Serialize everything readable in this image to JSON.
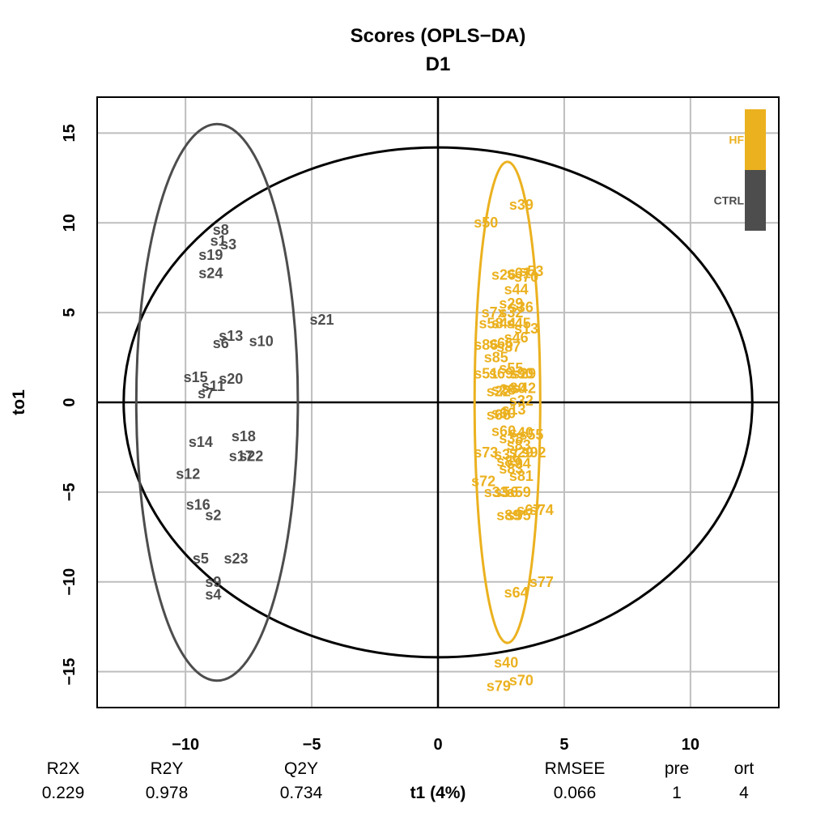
{
  "chart_data": {
    "type": "scatter",
    "title": "Scores (OPLS−DA)",
    "subtitle": "D1",
    "xlabel": "t1 (4%)",
    "ylabel": "to1",
    "xlim": [
      -13.5,
      13.5
    ],
    "ylim": [
      -17,
      17
    ],
    "xticks": [
      -10,
      -5,
      0,
      5,
      10
    ],
    "xtick_labels": [
      "−10",
      "−5",
      "0",
      "5",
      "10"
    ],
    "yticks": [
      -15,
      -10,
      -5,
      0,
      5,
      10,
      15
    ],
    "ytick_labels": [
      "−15",
      "−10",
      "−5",
      "0",
      "5",
      "10",
      "15"
    ],
    "grid": true,
    "legend_position": "top-right",
    "colors": {
      "HF": "#EBB11F",
      "CTRL": "#4D4D4D"
    },
    "hotelling_ellipse": {
      "cx": 0,
      "cy": 0,
      "rx": 12.45,
      "ry": 14.2
    },
    "group_ellipses": [
      {
        "group": "CTRL",
        "cx": -8.75,
        "cy": 0,
        "rx": 3.2,
        "ry": 15.5
      },
      {
        "group": "HF",
        "cx": 2.75,
        "cy": 0,
        "rx": 1.3,
        "ry": 13.4
      }
    ],
    "series": [
      {
        "name": "CTRL",
        "points": [
          {
            "label": "s8",
            "x": -8.6,
            "y": 9.6
          },
          {
            "label": "s1",
            "x": -8.7,
            "y": 9.0
          },
          {
            "label": "s3",
            "x": -8.3,
            "y": 8.8
          },
          {
            "label": "s19",
            "x": -9.0,
            "y": 8.2
          },
          {
            "label": "s24",
            "x": -9.0,
            "y": 7.2
          },
          {
            "label": "s21",
            "x": -4.6,
            "y": 4.6
          },
          {
            "label": "s13",
            "x": -8.2,
            "y": 3.7
          },
          {
            "label": "s6",
            "x": -8.6,
            "y": 3.3
          },
          {
            "label": "s10",
            "x": -7.0,
            "y": 3.4
          },
          {
            "label": "s15",
            "x": -9.6,
            "y": 1.4
          },
          {
            "label": "s20",
            "x": -8.2,
            "y": 1.3
          },
          {
            "label": "s11",
            "x": -8.9,
            "y": 0.9
          },
          {
            "label": "s7",
            "x": -9.2,
            "y": 0.5
          },
          {
            "label": "s14",
            "x": -9.4,
            "y": -2.2
          },
          {
            "label": "s18",
            "x": -7.7,
            "y": -1.9
          },
          {
            "label": "s17",
            "x": -7.8,
            "y": -3.0
          },
          {
            "label": "s22",
            "x": -7.4,
            "y": -3.0
          },
          {
            "label": "s12",
            "x": -9.9,
            "y": -4.0
          },
          {
            "label": "s16",
            "x": -9.5,
            "y": -5.7
          },
          {
            "label": "s2",
            "x": -8.9,
            "y": -6.3
          },
          {
            "label": "s5",
            "x": -9.4,
            "y": -8.7
          },
          {
            "label": "s23",
            "x": -8.0,
            "y": -8.7
          },
          {
            "label": "s9",
            "x": -8.9,
            "y": -10.0
          },
          {
            "label": "s4",
            "x": -8.9,
            "y": -10.7
          }
        ]
      },
      {
        "name": "HF",
        "points": [
          {
            "label": "s39",
            "x": 3.3,
            "y": 11.0
          },
          {
            "label": "s50",
            "x": 1.9,
            "y": 10.0
          },
          {
            "label": "s26",
            "x": 2.6,
            "y": 7.1
          },
          {
            "label": "s61",
            "x": 3.2,
            "y": 7.2
          },
          {
            "label": "s53",
            "x": 3.7,
            "y": 7.3
          },
          {
            "label": "s70",
            "x": 3.5,
            "y": 7.0
          },
          {
            "label": "s44",
            "x": 3.1,
            "y": 6.3
          },
          {
            "label": "s29",
            "x": 2.9,
            "y": 5.5
          },
          {
            "label": "s36",
            "x": 3.3,
            "y": 5.3
          },
          {
            "label": "s7x",
            "x": 2.2,
            "y": 5.0
          },
          {
            "label": "s32",
            "x": 2.9,
            "y": 5.0
          },
          {
            "label": "s58",
            "x": 2.1,
            "y": 4.4
          },
          {
            "label": "s44",
            "x": 2.6,
            "y": 4.4
          },
          {
            "label": "s45",
            "x": 3.2,
            "y": 4.4
          },
          {
            "label": "s13",
            "x": 3.5,
            "y": 4.1
          },
          {
            "label": "s46",
            "x": 3.1,
            "y": 3.6
          },
          {
            "label": "s86",
            "x": 1.9,
            "y": 3.2
          },
          {
            "label": "s66",
            "x": 2.5,
            "y": 3.3
          },
          {
            "label": "s87",
            "x": 2.8,
            "y": 3.1
          },
          {
            "label": "s85",
            "x": 2.3,
            "y": 2.5
          },
          {
            "label": "s55",
            "x": 2.9,
            "y": 1.9
          },
          {
            "label": "s51",
            "x": 1.9,
            "y": 1.6
          },
          {
            "label": "s69",
            "x": 2.5,
            "y": 1.6
          },
          {
            "label": "s90",
            "x": 3.3,
            "y": 1.6
          },
          {
            "label": "s29",
            "x": 3.4,
            "y": 1.6
          },
          {
            "label": "s28",
            "x": 2.6,
            "y": 0.7
          },
          {
            "label": "s80",
            "x": 3.0,
            "y": 0.8
          },
          {
            "label": "s42",
            "x": 3.4,
            "y": 0.8
          },
          {
            "label": "s22",
            "x": 2.4,
            "y": 0.6
          },
          {
            "label": "s32",
            "x": 3.3,
            "y": 0.1
          },
          {
            "label": "s13",
            "x": 3.0,
            "y": -0.4
          },
          {
            "label": "s66",
            "x": 2.4,
            "y": -0.7
          },
          {
            "label": "s60",
            "x": 2.6,
            "y": -0.6
          },
          {
            "label": "s60",
            "x": 2.6,
            "y": -1.6
          },
          {
            "label": "s40",
            "x": 3.3,
            "y": -1.7
          },
          {
            "label": "s55",
            "x": 3.7,
            "y": -1.8
          },
          {
            "label": "s38",
            "x": 2.9,
            "y": -2.0
          },
          {
            "label": "s83",
            "x": 3.2,
            "y": -2.4
          },
          {
            "label": "s73",
            "x": 1.9,
            "y": -2.8
          },
          {
            "label": "s37",
            "x": 2.7,
            "y": -2.9
          },
          {
            "label": "s29",
            "x": 3.3,
            "y": -2.8
          },
          {
            "label": "s92",
            "x": 3.8,
            "y": -2.8
          },
          {
            "label": "s89",
            "x": 2.8,
            "y": -3.3
          },
          {
            "label": "s94",
            "x": 3.2,
            "y": -3.4
          },
          {
            "label": "s83",
            "x": 2.9,
            "y": -3.7
          },
          {
            "label": "s81",
            "x": 3.3,
            "y": -4.1
          },
          {
            "label": "s72",
            "x": 1.8,
            "y": -4.4
          },
          {
            "label": "s33",
            "x": 2.3,
            "y": -5.0
          },
          {
            "label": "s56",
            "x": 2.7,
            "y": -5.0
          },
          {
            "label": "s59",
            "x": 3.2,
            "y": -5.0
          },
          {
            "label": "s67",
            "x": 3.6,
            "y": -6.0
          },
          {
            "label": "s74",
            "x": 4.1,
            "y": -6.0
          },
          {
            "label": "s89",
            "x": 2.8,
            "y": -6.3
          },
          {
            "label": "s95",
            "x": 3.2,
            "y": -6.3
          },
          {
            "label": "s77",
            "x": 4.1,
            "y": -10.0
          },
          {
            "label": "s64",
            "x": 3.1,
            "y": -10.6
          },
          {
            "label": "s40",
            "x": 2.7,
            "y": -14.5
          },
          {
            "label": "s70",
            "x": 3.3,
            "y": -15.5
          },
          {
            "label": "s79",
            "x": 2.4,
            "y": -15.8
          }
        ]
      }
    ],
    "legend": [
      {
        "label": "HF",
        "color": "#EBB11F"
      },
      {
        "label": "CTRL",
        "color": "#4D4D4D"
      }
    ],
    "stats": [
      {
        "name": "R2X",
        "value": "0.229"
      },
      {
        "name": "R2Y",
        "value": "0.978"
      },
      {
        "name": "Q2Y",
        "value": "0.734"
      },
      {
        "name": "RMSEE",
        "value": "0.066"
      },
      {
        "name": "pre",
        "value": "1"
      },
      {
        "name": "ort",
        "value": "4"
      }
    ]
  }
}
